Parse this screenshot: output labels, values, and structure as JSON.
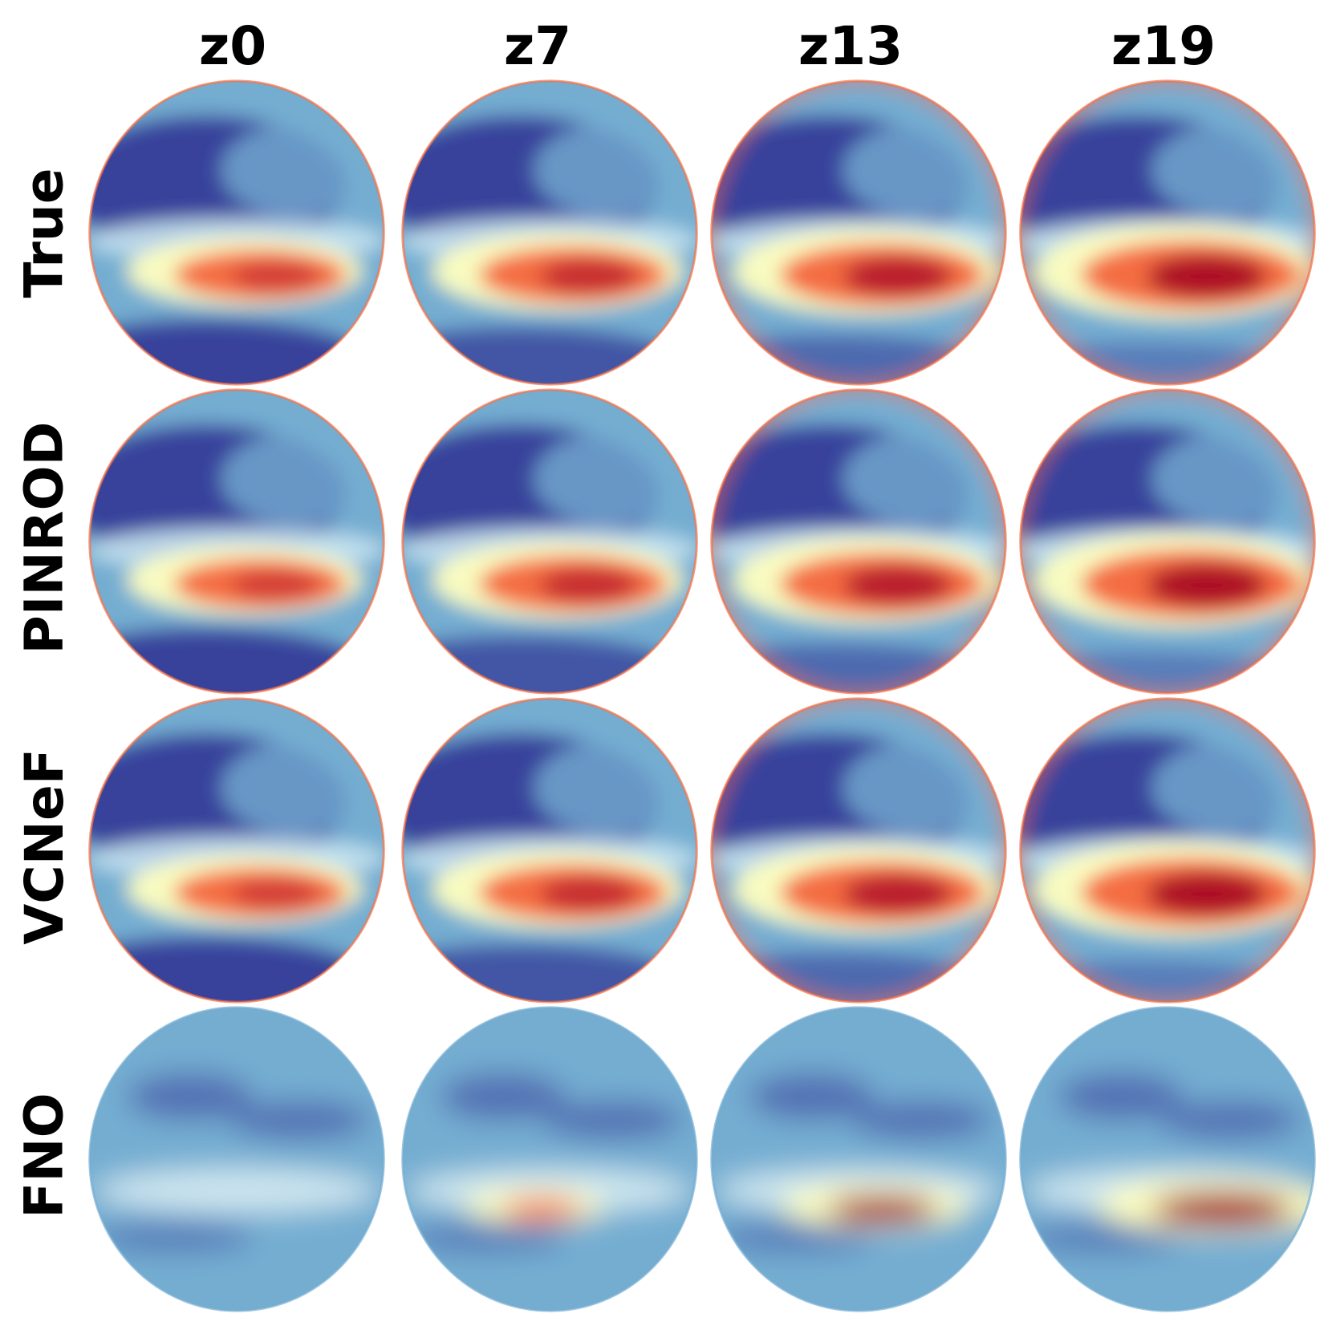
{
  "columns": [
    "z0",
    "z7",
    "z13",
    "z19"
  ],
  "rows": [
    "True",
    "PINROD",
    "VCNeF",
    "FNO"
  ],
  "colormap": {
    "low": "#313695",
    "mid_low": "#74add1",
    "mid": "#ffffbf",
    "mid_high": "#f46d43",
    "high": "#a50026"
  }
}
